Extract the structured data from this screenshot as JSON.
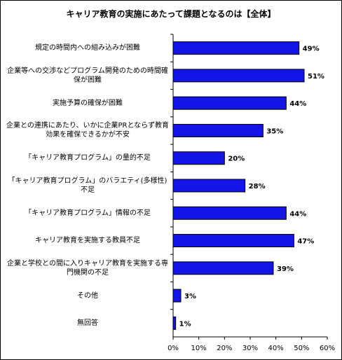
{
  "chart_data": {
    "type": "barh",
    "title": "キャリア教育の実施にあたって課題となるのは【全体】",
    "categories": [
      "規定の時間内への組み込みが困難",
      "企業等への交渉などプログラム開発のための時間確保が困難",
      "実施予算の確保が困難",
      "企業との連携にあたり、いかに企業PRとならず教育効果を確保できるかが不安",
      "「キャリア教育プログラム」の量的不足",
      "「キャリア教育プログラム」のバラエティ(多様性)不足",
      "「キャリア教育プログラム」情報の不足",
      "キャリア教育を実施する教員不足",
      "企業と学校との間に入りキャリア教育を実施する専門機関の不足",
      "その他",
      "無回答"
    ],
    "values": [
      49,
      51,
      44,
      35,
      20,
      28,
      44,
      47,
      39,
      3,
      1
    ],
    "value_labels": [
      "49%",
      "51%",
      "44%",
      "35%",
      "20%",
      "28%",
      "44%",
      "47%",
      "39%",
      "3%",
      "1%"
    ],
    "color": "#1414e6",
    "xlim": [
      0,
      60
    ],
    "xticks": [
      {
        "value": 0,
        "label": "0%"
      },
      {
        "value": 10,
        "label": "10%"
      },
      {
        "value": 20,
        "label": "20%"
      },
      {
        "value": 30,
        "label": "30%"
      },
      {
        "value": 40,
        "label": "40%"
      },
      {
        "value": 50,
        "label": "50%"
      },
      {
        "value": 60,
        "label": "60%"
      }
    ]
  }
}
